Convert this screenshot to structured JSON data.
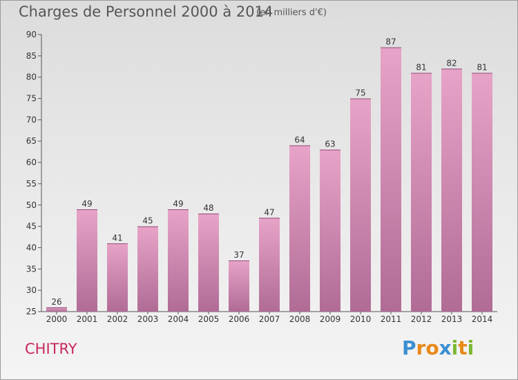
{
  "header": {
    "title": "Charges de Personnel 2000 à 2014",
    "subtitle": "(en milliers d'€)"
  },
  "place_name": "CHITRY",
  "logo": {
    "text": "Proxiti",
    "letters": [
      "P",
      "r",
      "o",
      "x",
      "i",
      "t",
      "i"
    ],
    "letter_colors": [
      "#3b8fd1",
      "#e8891a",
      "#e8891a",
      "#3b8fd1",
      "#7cb82f",
      "#e8891a",
      "#7cb82f"
    ]
  },
  "colors": {
    "bar_top": "#e8a3c8",
    "bar_bottom": "#b06c95",
    "place_text": "#c8275d"
  },
  "chart_data": {
    "type": "bar",
    "title": "Charges de Personnel 2000 à 2014",
    "subtitle": "(en milliers d'€)",
    "categories": [
      "2000",
      "2001",
      "2002",
      "2003",
      "2004",
      "2005",
      "2006",
      "2007",
      "2008",
      "2009",
      "2010",
      "2011",
      "2012",
      "2013",
      "2014"
    ],
    "values": [
      26,
      49,
      41,
      45,
      49,
      48,
      37,
      47,
      64,
      63,
      75,
      87,
      81,
      82,
      81
    ],
    "ylim": [
      25,
      90
    ],
    "yticks": [
      25,
      30,
      35,
      40,
      45,
      50,
      55,
      60,
      65,
      70,
      75,
      80,
      85,
      90
    ],
    "grid": false,
    "xlabel": "",
    "ylabel": ""
  }
}
